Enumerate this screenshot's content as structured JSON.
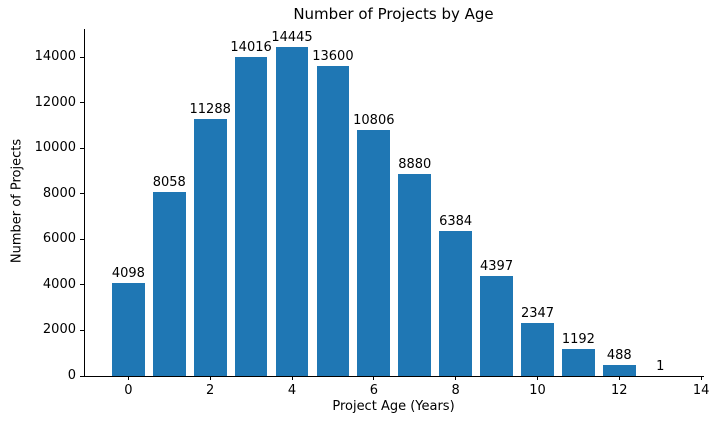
{
  "chart_data": {
    "type": "bar",
    "title": "Number of Projects by Age",
    "xlabel": "Project Age (Years)",
    "ylabel": "Number of Projects",
    "categories": [
      0,
      1,
      2,
      3,
      4,
      5,
      6,
      7,
      8,
      9,
      10,
      11,
      12,
      13
    ],
    "values": [
      4098,
      8058,
      11288,
      14016,
      14445,
      13600,
      10806,
      8880,
      6384,
      4397,
      2347,
      1192,
      488,
      1
    ],
    "value_labels": [
      4098,
      8058,
      11288,
      14016,
      14445,
      13600,
      10806,
      8880,
      6384,
      4397,
      2347,
      1192,
      488,
      1
    ],
    "x_ticks": [
      0,
      2,
      4,
      6,
      8,
      10,
      12,
      14
    ],
    "y_ticks": [
      0,
      2000,
      4000,
      6000,
      8000,
      10000,
      12000,
      14000
    ],
    "xlim": [
      -1.06,
      14.07
    ],
    "ylim": [
      0,
      15230
    ],
    "bar_width": 0.8,
    "bar_color": "#1f77b4",
    "axis_color": "#000000",
    "grid": false,
    "legend": null
  }
}
